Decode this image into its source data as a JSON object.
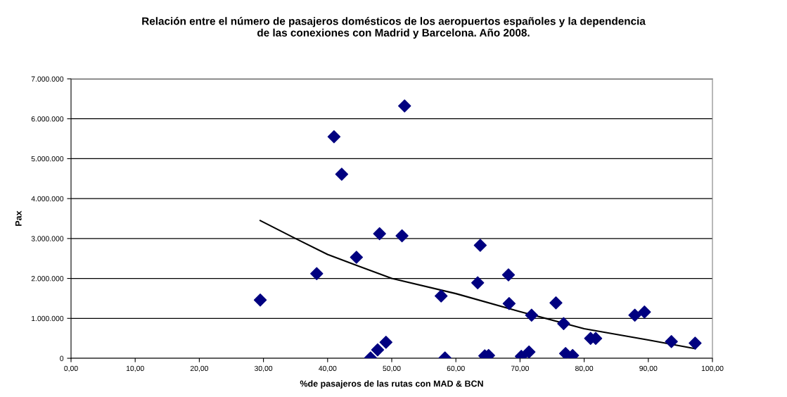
{
  "chart_data": {
    "type": "scatter",
    "title": "Relación entre el número de pasajeros domésticos de los aeropuertos españoles y la dependencia\nde las conexiones con Madrid y Barcelona. Año 2008.",
    "xlabel": "%de pasajeros de las rutas con MAD & BCN",
    "ylabel": "Pax",
    "series": [
      {
        "color": "#000080",
        "marker": "diamond",
        "x": [
          29.5,
          38.3,
          41.0,
          42.2,
          44.5,
          46.7,
          47.8,
          48.1,
          49.1,
          51.6,
          52.0,
          57.7,
          58.3,
          63.4,
          63.8,
          64.5,
          65.1,
          68.2,
          68.3,
          70.2,
          71.4,
          71.8,
          75.6,
          76.8,
          77.1,
          78.2,
          81.0,
          81.8,
          87.9,
          89.4,
          93.6,
          97.3
        ],
        "values": [
          1460000,
          2120000,
          5550000,
          4610000,
          2530000,
          10000,
          210000,
          3120000,
          400000,
          3070000,
          6320000,
          1560000,
          10000,
          1890000,
          2830000,
          60000,
          70000,
          2090000,
          1370000,
          50000,
          160000,
          1080000,
          1390000,
          870000,
          120000,
          70000,
          500000,
          500000,
          1080000,
          1160000,
          420000,
          380000
        ]
      },
      {
        "type": "line",
        "color": "#000000",
        "marker": "none",
        "line_style": "solid",
        "x": [
          29.5,
          35,
          40,
          50,
          60,
          70,
          80,
          90,
          97.3
        ],
        "values": [
          3450000,
          3000000,
          2600000,
          2000000,
          1620000,
          1170000,
          740000,
          460000,
          240000
        ]
      }
    ],
    "xlim": [
      0,
      100
    ],
    "xticks": [
      {
        "value": 0,
        "label": "0,00"
      },
      {
        "value": 10,
        "label": "10,00"
      },
      {
        "value": 20,
        "label": "20,00"
      },
      {
        "value": 30,
        "label": "30,00"
      },
      {
        "value": 40,
        "label": "40,00"
      },
      {
        "value": 50,
        "label": "50,00"
      },
      {
        "value": 60,
        "label": "60,00"
      },
      {
        "value": 70,
        "label": "70,00"
      },
      {
        "value": 80,
        "label": "80,00"
      },
      {
        "value": 90,
        "label": "90,00"
      },
      {
        "value": 100,
        "label": "100,00"
      }
    ],
    "ylim": [
      0,
      7000000
    ],
    "yticks": [
      0,
      {
        "value": 1000000,
        "label": "1.000.000"
      },
      {
        "value": 2000000,
        "label": "2.000.000"
      },
      {
        "value": 3000000,
        "label": "3.000.000"
      },
      {
        "value": 4000000,
        "label": "4.000.000"
      },
      {
        "value": 5000000,
        "label": "5.000.000"
      },
      {
        "value": 6000000,
        "label": "6.000.000"
      },
      {
        "value": 7000000,
        "label": "7.000.000"
      }
    ],
    "grid": "y",
    "legend": false
  }
}
